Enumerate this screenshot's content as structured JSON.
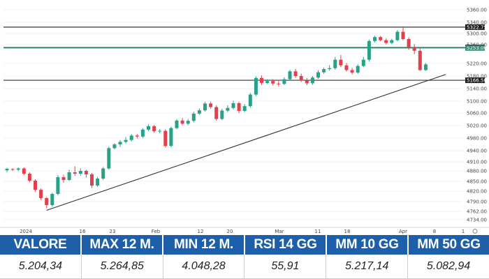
{
  "chart_data": {
    "type": "candlestick",
    "y_ticks": [
      "5360.00",
      "5340.00",
      "5300.00",
      "5260.00",
      "5220.00",
      "5180.00",
      "5140.00",
      "5100.00",
      "5060.00",
      "5020.00",
      "4980.00",
      "4940.00",
      "4910.00",
      "4880.00",
      "4850.00",
      "4820.00",
      "4790.00",
      "4762.00",
      "4734.00"
    ],
    "x_ticks": [
      "2024",
      "16",
      "23",
      "Feb",
      "12",
      "20",
      "Mar",
      "11",
      "18",
      "Apr",
      "8",
      "1"
    ],
    "levels": [
      {
        "value": 5322.75,
        "label": "5322.75",
        "color": "#333333",
        "label_bg": "#1e1e1e"
      },
      {
        "value": 5254.0,
        "label": "5254.00",
        "color": "#333333",
        "label_bg": "#1e1e1e"
      },
      {
        "value": 5253.0,
        "label": "5253.00",
        "color": "#2f8f7a",
        "label_bg": "#2f8f7a"
      },
      {
        "value": 5166.5,
        "label": "5166.50",
        "color": "#333333",
        "label_bg": "#1e1e1e"
      }
    ],
    "trendline": {
      "from": 4765,
      "to": 5185
    },
    "candles": [
      [
        4882,
        4887,
        4876,
        4890
      ],
      [
        4886,
        4884,
        4880,
        4889
      ],
      [
        4884,
        4888,
        4879,
        4891
      ],
      [
        4888,
        4872,
        4868,
        4892
      ],
      [
        4872,
        4852,
        4847,
        4876
      ],
      [
        4852,
        4824,
        4818,
        4856
      ],
      [
        4824,
        4800,
        4795,
        4828
      ],
      [
        4800,
        4780,
        4771,
        4803
      ],
      [
        4780,
        4812,
        4776,
        4815
      ],
      [
        4812,
        4862,
        4808,
        4868
      ],
      [
        4862,
        4854,
        4846,
        4869
      ],
      [
        4854,
        4876,
        4851,
        4884
      ],
      [
        4876,
        4872,
        4866,
        4895
      ],
      [
        4872,
        4880,
        4867,
        4889
      ],
      [
        4880,
        4870,
        4861,
        4884
      ],
      [
        4870,
        4837,
        4830,
        4874
      ],
      [
        4837,
        4858,
        4833,
        4863
      ],
      [
        4858,
        4888,
        4854,
        4893
      ],
      [
        4888,
        4948,
        4884,
        4953
      ],
      [
        4948,
        4960,
        4944,
        4964
      ],
      [
        4960,
        4968,
        4952,
        4974
      ],
      [
        4968,
        4974,
        4963,
        4983
      ],
      [
        4974,
        4988,
        4969,
        4993
      ],
      [
        4988,
        4985,
        4979,
        4993
      ],
      [
        4985,
        5007,
        4980,
        5012
      ],
      [
        5007,
        5018,
        5002,
        5024
      ],
      [
        5018,
        5002,
        4997,
        5022
      ],
      [
        5002,
        5003,
        4996,
        5009
      ],
      [
        5003,
        4955,
        4950,
        5008
      ],
      [
        4955,
        5012,
        4951,
        5017
      ],
      [
        5012,
        5036,
        5008,
        5041
      ],
      [
        5036,
        5026,
        5021,
        5044
      ],
      [
        5026,
        5035,
        5021,
        5041
      ],
      [
        5035,
        5058,
        5030,
        5064
      ],
      [
        5058,
        5069,
        5054,
        5075
      ],
      [
        5069,
        5092,
        5065,
        5097
      ],
      [
        5092,
        5080,
        5075,
        5098
      ],
      [
        5080,
        5041,
        5036,
        5086
      ],
      [
        5041,
        5068,
        5037,
        5074
      ],
      [
        5068,
        5077,
        5063,
        5086
      ],
      [
        5077,
        5093,
        5072,
        5101
      ],
      [
        5093,
        5067,
        5060,
        5098
      ],
      [
        5067,
        5083,
        5063,
        5090
      ],
      [
        5083,
        5121,
        5078,
        5126
      ],
      [
        5121,
        5174,
        5116,
        5179
      ],
      [
        5174,
        5158,
        5152,
        5182
      ],
      [
        5158,
        5164,
        5154,
        5170
      ],
      [
        5164,
        5156,
        5150,
        5170
      ],
      [
        5156,
        5155,
        5147,
        5164
      ],
      [
        5155,
        5170,
        5151,
        5176
      ],
      [
        5170,
        5195,
        5166,
        5200
      ],
      [
        5195,
        5180,
        5174,
        5203
      ],
      [
        5180,
        5166,
        5161,
        5188
      ],
      [
        5166,
        5157,
        5151,
        5174
      ],
      [
        5157,
        5175,
        5152,
        5180
      ],
      [
        5175,
        5192,
        5171,
        5198
      ],
      [
        5192,
        5202,
        5187,
        5207
      ],
      [
        5202,
        5205,
        5197,
        5215
      ],
      [
        5205,
        5228,
        5200,
        5234
      ],
      [
        5228,
        5214,
        5208,
        5238
      ],
      [
        5214,
        5199,
        5194,
        5221
      ],
      [
        5199,
        5191,
        5185,
        5206
      ],
      [
        5191,
        5212,
        5187,
        5217
      ],
      [
        5212,
        5228,
        5208,
        5234
      ],
      [
        5228,
        5273,
        5224,
        5278
      ],
      [
        5273,
        5287,
        5268,
        5292
      ],
      [
        5287,
        5276,
        5272,
        5291
      ],
      [
        5276,
        5266,
        5261,
        5282
      ],
      [
        5266,
        5276,
        5262,
        5281
      ],
      [
        5276,
        5306,
        5272,
        5312
      ],
      [
        5306,
        5280,
        5275,
        5326
      ],
      [
        5280,
        5254,
        5249,
        5286
      ],
      [
        5254,
        5247,
        5240,
        5262
      ],
      [
        5247,
        5199,
        5196,
        5252
      ],
      [
        5199,
        5217,
        5196,
        5221
      ]
    ]
  },
  "stats": {
    "headers": [
      "VALORE",
      "MAX 12 M.",
      "MIN 12 M.",
      "RSI 14 GG",
      "MM 10 GG",
      "MM 50 GG"
    ],
    "values": [
      "5.204,34",
      "5.264,85",
      "4.048,28",
      "55,91",
      "5.217,14",
      "5.082,94"
    ]
  },
  "colors": {
    "up": "#27a187",
    "down": "#e0414d",
    "header_bg": "#1d5fa8"
  }
}
